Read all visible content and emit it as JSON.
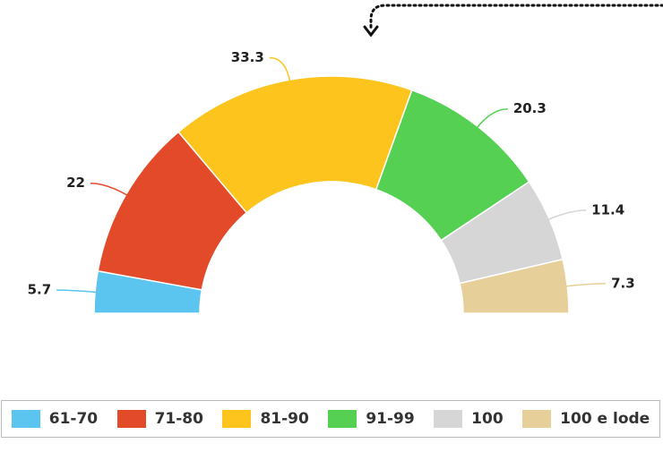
{
  "chart_data": {
    "type": "semi-donut",
    "categories": [
      "61-70",
      "71-80",
      "81-90",
      "91-99",
      "100",
      "100 e lode"
    ],
    "values": [
      5.7,
      22,
      33.3,
      20.3,
      11.4,
      7.3
    ],
    "colors": [
      "#5bc5ef",
      "#e24a2a",
      "#fcc41c",
      "#55d053",
      "#d6d6d6",
      "#e6cf98"
    ]
  }
}
